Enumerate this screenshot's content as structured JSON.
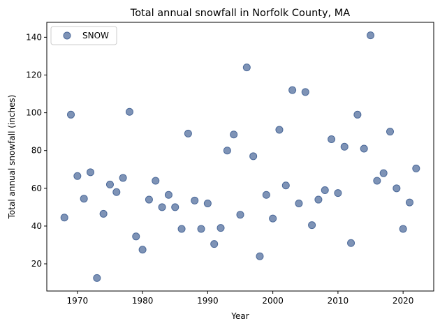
{
  "chart_data": {
    "type": "scatter",
    "title": "Total annual snowfall in Norfolk County, MA",
    "xlabel": "Year",
    "ylabel": "Total annual snowfall (inches)",
    "xlim": [
      1965.3,
      1966.3
    ],
    "xlim_note": "",
    "xticks": [
      1970,
      1980,
      1990,
      2000,
      2010,
      2020
    ],
    "yticks": [
      20,
      40,
      60,
      80,
      100,
      120,
      140
    ],
    "grid": false,
    "legend": {
      "position": "top-left"
    },
    "series": [
      {
        "name": "SNOW",
        "color": "#4c6a9a",
        "x": [
          1968,
          1969,
          1970,
          1971,
          1972,
          1973,
          1974,
          1975,
          1976,
          1977,
          1978,
          1979,
          1980,
          1981,
          1982,
          1983,
          1984,
          1985,
          1986,
          1987,
          1988,
          1989,
          1990,
          1991,
          1992,
          1993,
          1994,
          1995,
          1996,
          1997,
          1998,
          1999,
          2000,
          2001,
          2002,
          2003,
          2004,
          2005,
          2006,
          2007,
          2008,
          2009,
          2010,
          2011,
          2012,
          2013,
          2014,
          2015,
          2016,
          2017,
          2018,
          2019,
          2020,
          2021,
          2022
        ],
        "y": [
          44.5,
          99,
          66.5,
          54.5,
          68.5,
          12.5,
          46.5,
          62,
          58,
          65.5,
          100.5,
          34.5,
          27.5,
          54,
          64,
          50,
          56.5,
          50,
          38.5,
          89,
          53.5,
          38.5,
          52,
          30.5,
          39,
          80,
          88.5,
          46,
          124,
          77,
          24,
          56.5,
          44,
          91,
          61.5,
          112,
          52,
          111,
          40.5,
          54,
          59,
          86,
          57.5,
          82,
          31,
          99,
          81,
          141,
          64,
          68,
          90,
          60,
          38.5,
          52.5,
          70.5
        ]
      }
    ]
  }
}
